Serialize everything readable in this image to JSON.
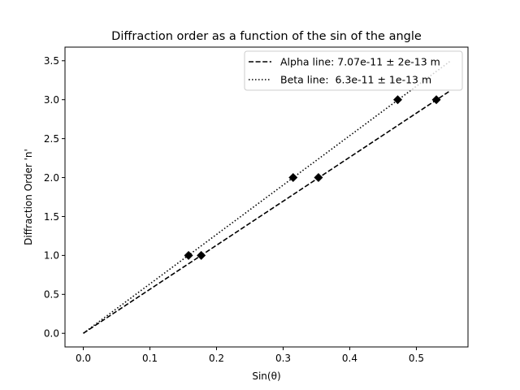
{
  "chart_data": {
    "type": "scatter",
    "title": "Diffraction order as a function of the sin of the angle",
    "xlabel": "Sin(θ)",
    "ylabel": "Diffraction Order 'n'",
    "xlim": [
      -0.0275,
      0.5775
    ],
    "ylim": [
      -0.175,
      3.675
    ],
    "xticks": [
      0.0,
      0.1,
      0.2,
      0.3,
      0.4,
      0.5
    ],
    "xtick_labels": [
      "0.0",
      "0.1",
      "0.2",
      "0.3",
      "0.4",
      "0.5"
    ],
    "yticks": [
      0.0,
      0.5,
      1.0,
      1.5,
      2.0,
      2.5,
      3.0,
      3.5
    ],
    "ytick_labels": [
      "0.0",
      "0.5",
      "1.0",
      "1.5",
      "2.0",
      "2.5",
      "3.0",
      "3.5"
    ],
    "grid": false,
    "legend_position": "top-right",
    "points": {
      "marker": "diamond",
      "color": "#000000",
      "data": [
        {
          "x": 0.158,
          "y": 1
        },
        {
          "x": 0.177,
          "y": 1
        },
        {
          "x": 0.315,
          "y": 2
        },
        {
          "x": 0.353,
          "y": 2
        },
        {
          "x": 0.472,
          "y": 3
        },
        {
          "x": 0.53,
          "y": 3
        }
      ]
    },
    "series": [
      {
        "name": "Alpha line: 7.07e-11 ± 2e-13 m",
        "style": "dashed",
        "color": "#000000",
        "x": [
          0.0,
          0.55
        ],
        "y": [
          0.0,
          3.11
        ]
      },
      {
        "name": "Beta line:  6.3e-11 ± 1e-13 m",
        "style": "dotted",
        "color": "#000000",
        "x": [
          0.0,
          0.55
        ],
        "y": [
          0.0,
          3.49
        ]
      }
    ]
  }
}
